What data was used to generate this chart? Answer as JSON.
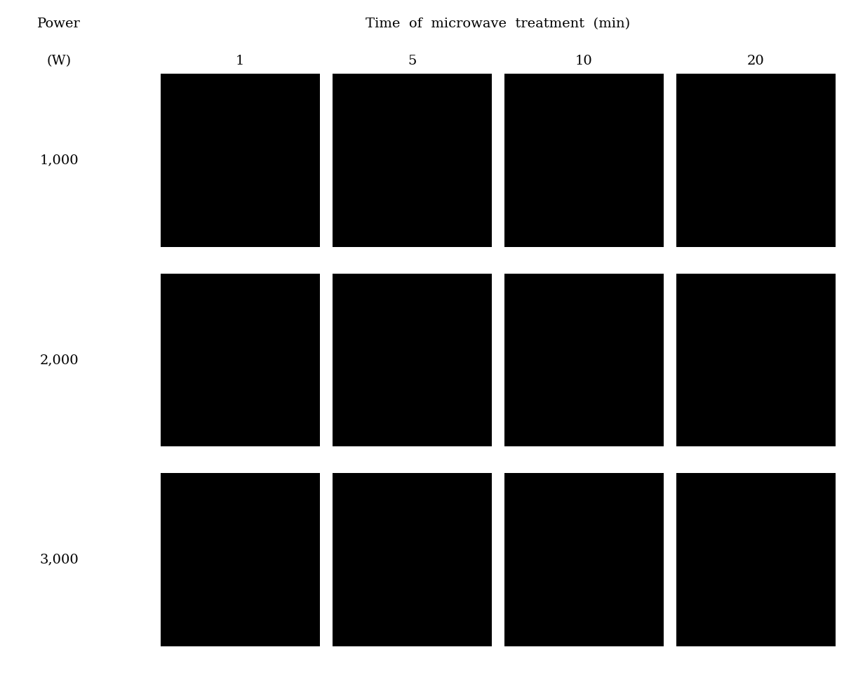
{
  "title": "Time  of  microwave  treatment  (min)",
  "power_label": "Power",
  "power_unit": "(W)",
  "col_labels": [
    "1",
    "5",
    "10",
    "20"
  ],
  "row_labels": [
    "1,000",
    "2,000",
    "3,000"
  ],
  "background_color": "#ffffff",
  "panel_bg": "#000000",
  "fig_width": 12.03,
  "fig_height": 9.59,
  "title_fontsize": 14,
  "label_fontsize": 14,
  "col_label_fontsize": 14,
  "row_label_fontsize": 14,
  "panel_colors": [
    [
      [
        "#7A1515",
        "#8B1A1A",
        "#701010"
      ],
      [
        "#CC2020",
        "#BB1111",
        "#AA0808"
      ],
      [
        "#6B1010",
        "#7A1515",
        "#6A6A6A"
      ],
      [
        "#CC2222",
        "#AA1515",
        "#991010"
      ]
    ],
    [
      [
        "#7A1010",
        "#8B1515",
        "#701010"
      ],
      [
        "#4A0808",
        "#5A0A0A",
        "#3A0606"
      ],
      [
        "#3A3A3A",
        "#404040",
        "#383838"
      ],
      [
        "#4A0808",
        "#404040",
        "#CC6600"
      ]
    ],
    [
      [
        "#6B1010",
        "#5A0A0A",
        "#701010"
      ],
      [
        "#5A0A0A",
        "#484848",
        "#404040"
      ],
      [
        "#484848",
        "#404040",
        "#505050"
      ],
      [
        "#7A1010",
        "#6B1010",
        "#CC6600"
      ]
    ]
  ]
}
